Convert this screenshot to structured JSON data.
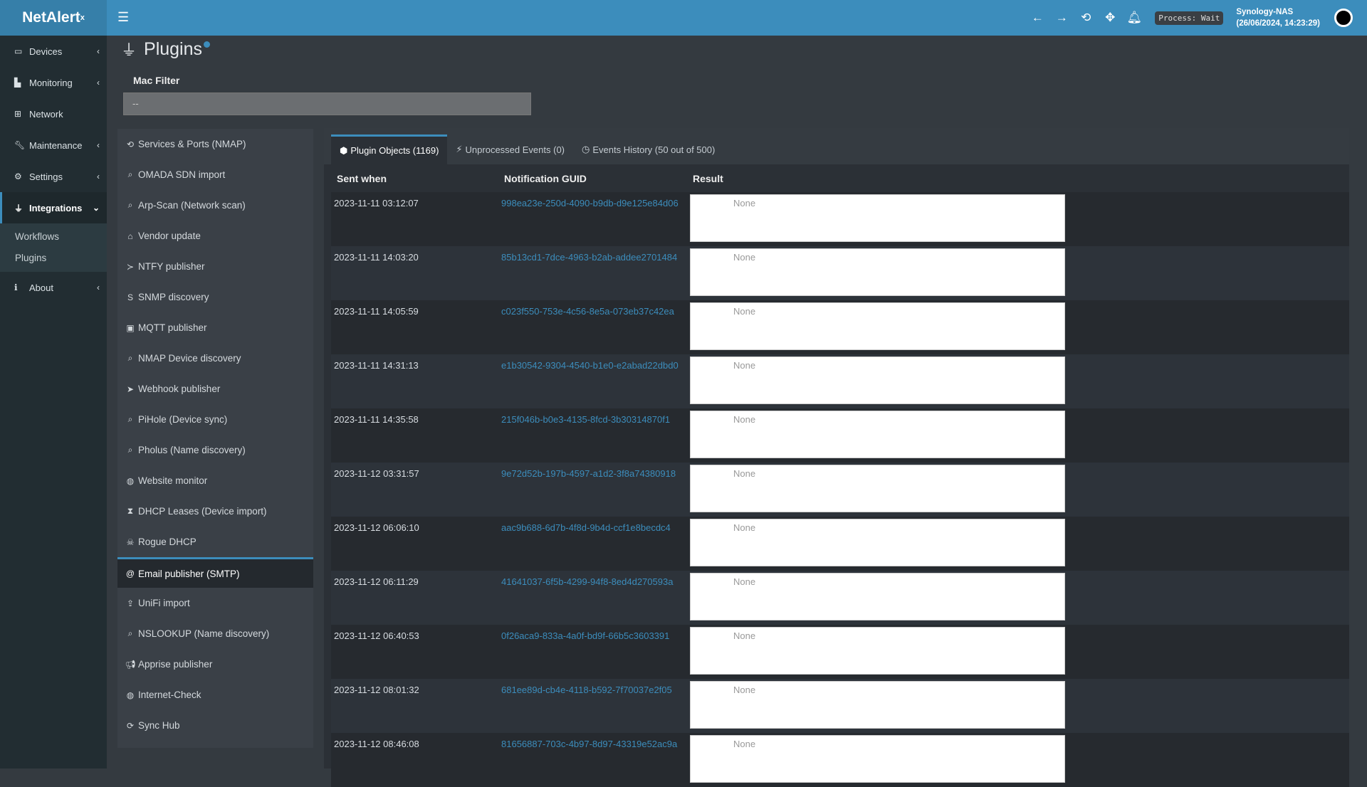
{
  "header": {
    "logo": "NetAlert",
    "logo_sup": "x",
    "process": "Process: Wait",
    "host": "Synology-NAS",
    "datetime": "(26/06/2024, 14:23:29)"
  },
  "sidebar": {
    "items": [
      {
        "label": "Devices"
      },
      {
        "label": "Monitoring"
      },
      {
        "label": "Network"
      },
      {
        "label": "Maintenance"
      },
      {
        "label": "Settings"
      },
      {
        "label": "Integrations"
      },
      {
        "label": "About"
      }
    ],
    "sub": [
      "Workflows",
      "Plugins"
    ]
  },
  "page": {
    "title": "Plugins",
    "mac_filter_label": "Mac Filter",
    "mac_filter_value": "--"
  },
  "plugins": [
    "Services & Ports (NMAP)",
    "OMADA SDN import",
    "Arp-Scan (Network scan)",
    "Vendor update",
    "NTFY publisher",
    "SNMP discovery",
    "MQTT publisher",
    "NMAP Device discovery",
    "Webhook publisher",
    "PiHole (Device sync)",
    "Pholus (Name discovery)",
    "Website monitor",
    "DHCP Leases (Device import)",
    "Rogue DHCP",
    "Email publisher (SMTP)",
    "UniFi import",
    "NSLOOKUP (Name discovery)",
    "Apprise publisher",
    "Internet-Check",
    "Sync Hub"
  ],
  "tabs": [
    "Plugin Objects (1169)",
    "Unprocessed Events (0)",
    "Events History (50 out of 500)"
  ],
  "table": {
    "headers": [
      "Sent when",
      "Notification GUID",
      "Result"
    ],
    "rows": [
      [
        "2023-11-11 03:12:07",
        "998ea23e-250d-4090-b9db-d9e125e84d06",
        "None"
      ],
      [
        "2023-11-11 14:03:20",
        "85b13cd1-7dce-4963-b2ab-addee2701484",
        "None"
      ],
      [
        "2023-11-11 14:05:59",
        "c023f550-753e-4c56-8e5a-073eb37c42ea",
        "None"
      ],
      [
        "2023-11-11 14:31:13",
        "e1b30542-9304-4540-b1e0-e2abad22dbd0",
        "None"
      ],
      [
        "2023-11-11 14:35:58",
        "215f046b-b0e3-4135-8fcd-3b30314870f1",
        "None"
      ],
      [
        "2023-11-12 03:31:57",
        "9e72d52b-197b-4597-a1d2-3f8a74380918",
        "None"
      ],
      [
        "2023-11-12 06:06:10",
        "aac9b688-6d7b-4f8d-9b4d-ccf1e8becdc4",
        "None"
      ],
      [
        "2023-11-12 06:11:29",
        "41641037-6f5b-4299-94f8-8ed4d270593a",
        "None"
      ],
      [
        "2023-11-12 06:40:53",
        "0f26aca9-833a-4a0f-bd9f-66b5c3603391",
        "None"
      ],
      [
        "2023-11-12 08:01:32",
        "681ee89d-cb4e-4118-b592-7f70037e2f05",
        "None"
      ],
      [
        "2023-11-12 08:46:08",
        "81656887-703c-4b97-8d97-43319e52ac9a",
        "None"
      ]
    ]
  }
}
